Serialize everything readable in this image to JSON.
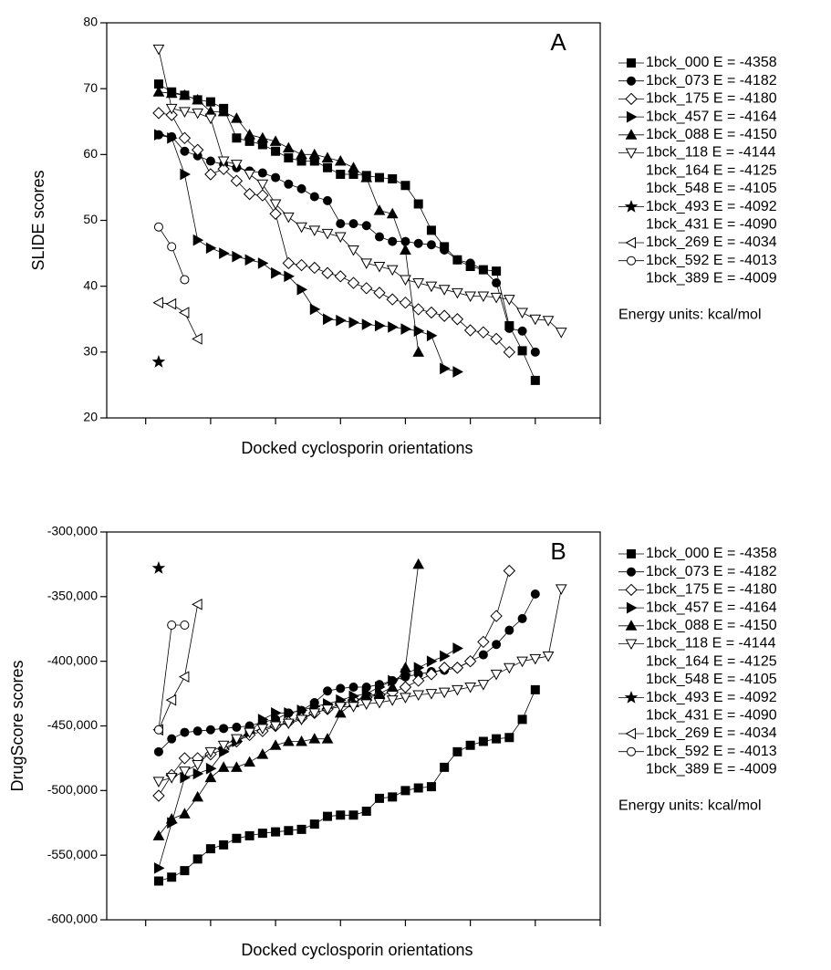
{
  "chart_data": [
    {
      "type": "line",
      "panel_label": "A",
      "ylabel": "SLIDE scores",
      "xlabel": "Docked cyclosporin orientations",
      "legend_note": "Energy units: kcal/mol",
      "xlim": [
        -3,
        35
      ],
      "xticks": [
        0,
        5,
        10,
        15,
        20,
        25,
        30,
        35
      ],
      "ylim": [
        20,
        80
      ],
      "yticks": [
        20,
        30,
        40,
        50,
        60,
        70,
        80
      ],
      "series": [
        {
          "name": "1bck_000 E = -4358",
          "marker": "square",
          "filled": true,
          "color": "#000000",
          "x": [
            1,
            2,
            3,
            4,
            5,
            6,
            7,
            8,
            9,
            10,
            11,
            12,
            13,
            14,
            15,
            16,
            17,
            18,
            19,
            20,
            21,
            22,
            23,
            24,
            25,
            26,
            27,
            28,
            29,
            30
          ],
          "values": [
            70.7,
            69.5,
            69,
            68.3,
            68,
            67,
            62.5,
            62,
            61.5,
            60.5,
            59.5,
            59,
            59,
            58,
            57,
            57,
            56.8,
            56.5,
            56.3,
            55.3,
            52.5,
            48.5,
            46,
            44,
            43,
            42.5,
            42.3,
            34,
            30.2,
            25.7
          ]
        },
        {
          "name": "1bck_073 E = -4182",
          "marker": "circle",
          "filled": true,
          "color": "#000000",
          "x": [
            1,
            2,
            3,
            4,
            5,
            6,
            7,
            8,
            9,
            10,
            11,
            12,
            13,
            14,
            15,
            16,
            17,
            18,
            19,
            20,
            21,
            22,
            23,
            24,
            25,
            26,
            27,
            28,
            29,
            30
          ],
          "values": [
            63,
            62.7,
            60.5,
            59.8,
            59,
            58.5,
            58,
            57.5,
            57.2,
            56.5,
            55.5,
            54.8,
            53.6,
            53,
            49.5,
            49.5,
            49.2,
            47.5,
            46.8,
            46.8,
            46.5,
            46.3,
            45.5,
            44,
            43.5,
            42.5,
            40.5,
            33.6,
            33.2,
            30
          ]
        },
        {
          "name": "1bck_175 E = -4180",
          "marker": "diamond",
          "filled": false,
          "color": "#000000",
          "x": [
            1,
            2,
            3,
            4,
            5,
            6,
            7,
            8,
            9,
            10,
            11,
            12,
            13,
            14,
            15,
            16,
            17,
            18,
            19,
            20,
            21,
            22,
            23,
            24,
            25,
            26,
            27,
            28
          ],
          "values": [
            66.3,
            66,
            62.5,
            60.7,
            57,
            57.8,
            56,
            54,
            53.8,
            51,
            43.5,
            43.2,
            42.8,
            42,
            41.5,
            40.5,
            39.7,
            39,
            38,
            37.5,
            36.5,
            36,
            35.5,
            35,
            33.3,
            33,
            32,
            30
          ]
        },
        {
          "name": "1bck_457 E = -4164",
          "marker": "triangle-right",
          "filled": true,
          "color": "#000000",
          "x": [
            1,
            2,
            3,
            4,
            5,
            6,
            7,
            8,
            9,
            10,
            11,
            12,
            13,
            14,
            15,
            16,
            17,
            18,
            19,
            20,
            21,
            22,
            23,
            24
          ],
          "values": [
            63,
            62.5,
            57,
            47,
            45.8,
            45,
            44.5,
            44,
            43.5,
            42,
            41.5,
            39.5,
            36.5,
            35,
            34.8,
            34.5,
            34.2,
            34,
            33.8,
            33.5,
            33.2,
            32.5,
            27.5,
            27
          ]
        },
        {
          "name": "1bck_088 E = -4150",
          "marker": "triangle-up",
          "filled": true,
          "color": "#000000",
          "x": [
            1,
            2,
            3,
            4,
            5,
            6,
            7,
            8,
            9,
            10,
            11,
            12,
            13,
            14,
            15,
            16,
            17,
            18,
            19,
            20,
            21
          ],
          "values": [
            69.5,
            69.3,
            69,
            68.3,
            66.5,
            66.5,
            65.5,
            63,
            62.5,
            62,
            61,
            60,
            60,
            59.5,
            59,
            58,
            56.5,
            51.5,
            51,
            45.5,
            30
          ]
        },
        {
          "name": "1bck_118 E = -4144",
          "marker": "triangle-down",
          "filled": false,
          "color": "#000000",
          "x": [
            1,
            2,
            3,
            4,
            5,
            6,
            7,
            8,
            9,
            10,
            11,
            12,
            13,
            14,
            15,
            16,
            17,
            18,
            19,
            20,
            21,
            22,
            23,
            24,
            25,
            26,
            27,
            28,
            29,
            30,
            31,
            32
          ],
          "values": [
            76,
            67,
            66.5,
            66.3,
            65.5,
            59,
            58.5,
            57,
            55.5,
            52.5,
            50.5,
            49,
            48.5,
            48,
            47.5,
            45.5,
            43.5,
            43,
            42.5,
            41,
            40.5,
            40,
            39.5,
            39,
            38.5,
            38.5,
            38.3,
            38,
            36,
            35,
            34.8,
            33
          ]
        },
        {
          "name": "1bck_164 E = -4125",
          "x": [],
          "values": []
        },
        {
          "name": "1bck_548 E = -4105",
          "x": [],
          "values": []
        },
        {
          "name": "1bck_493 E = -4092",
          "marker": "star",
          "filled": true,
          "color": "#000000",
          "x": [
            1
          ],
          "values": [
            28.5
          ]
        },
        {
          "name": "1bck_431 E = -4090",
          "x": [],
          "values": []
        },
        {
          "name": "1bck_269 E = -4034",
          "marker": "triangle-left",
          "filled": false,
          "color": "#000000",
          "x": [
            1,
            2,
            3,
            4
          ],
          "values": [
            37.5,
            37.3,
            36,
            32
          ]
        },
        {
          "name": "1bck_592 E = -4013",
          "marker": "circle",
          "filled": false,
          "color": "#000000",
          "x": [
            1,
            2,
            3
          ],
          "values": [
            49,
            46,
            41
          ]
        },
        {
          "name": "1bck_389 E = -4009",
          "x": [],
          "values": []
        }
      ]
    },
    {
      "type": "line",
      "panel_label": "B",
      "ylabel": "DrugScore scores",
      "xlabel": "Docked cyclosporin orientations",
      "legend_note": "Energy units: kcal/mol",
      "xlim": [
        -3,
        35
      ],
      "xticks": [
        0,
        5,
        10,
        15,
        20,
        25,
        30,
        35
      ],
      "ylim": [
        -600000,
        -300000
      ],
      "yticks": [
        {
          "value": -600000,
          "label": "-600,000"
        },
        {
          "value": -550000,
          "label": "-550,000"
        },
        {
          "value": -500000,
          "label": "-500,000"
        },
        {
          "value": -450000,
          "label": "-450,000"
        },
        {
          "value": -400000,
          "label": "-400,000"
        },
        {
          "value": -350000,
          "label": "-350,000"
        },
        {
          "value": -300000,
          "label": "-300,000"
        }
      ],
      "series": [
        {
          "name": "1bck_000 E = -4358",
          "marker": "square",
          "filled": true,
          "color": "#000000",
          "x": [
            1,
            2,
            3,
            4,
            5,
            6,
            7,
            8,
            9,
            10,
            11,
            12,
            13,
            14,
            15,
            16,
            17,
            18,
            19,
            20,
            21,
            22,
            23,
            24,
            25,
            26,
            27,
            28,
            29,
            30
          ],
          "values": [
            -570000,
            -567000,
            -562000,
            -553000,
            -545000,
            -542000,
            -537000,
            -535000,
            -533000,
            -532000,
            -531000,
            -530000,
            -526000,
            -520000,
            -519000,
            -519000,
            -516000,
            -506000,
            -505000,
            -500000,
            -498000,
            -497000,
            -482000,
            -470000,
            -465000,
            -462000,
            -460000,
            -459000,
            -445000,
            -422000
          ]
        },
        {
          "name": "1bck_073 E = -4182",
          "marker": "circle",
          "filled": true,
          "color": "#000000",
          "x": [
            1,
            2,
            3,
            4,
            5,
            6,
            7,
            8,
            9,
            10,
            11,
            12,
            13,
            14,
            15,
            16,
            17,
            18,
            19,
            20,
            21,
            22,
            23,
            24,
            25,
            26,
            27,
            28,
            29,
            30
          ],
          "values": [
            -470000,
            -460000,
            -455000,
            -454000,
            -453000,
            -452000,
            -451000,
            -450000,
            -447000,
            -445000,
            -440000,
            -438000,
            -432000,
            -423000,
            -421000,
            -420000,
            -420000,
            -418000,
            -415000,
            -412000,
            -410000,
            -408000,
            -407000,
            -405000,
            -400000,
            -395000,
            -387000,
            -376000,
            -367000,
            -348000
          ]
        },
        {
          "name": "1bck_175 E = -4180",
          "marker": "diamond",
          "filled": false,
          "color": "#000000",
          "x": [
            1,
            2,
            3,
            4,
            5,
            6,
            7,
            8,
            9,
            10,
            11,
            12,
            13,
            14,
            15,
            16,
            17,
            18,
            19,
            20,
            21,
            22,
            23,
            24,
            25,
            26,
            27,
            28
          ],
          "values": [
            -504000,
            -488000,
            -475000,
            -475000,
            -472000,
            -468000,
            -462000,
            -457000,
            -454000,
            -450000,
            -447000,
            -444000,
            -440000,
            -437000,
            -433000,
            -430000,
            -428000,
            -426000,
            -424000,
            -420000,
            -415000,
            -410000,
            -405000,
            -405000,
            -400000,
            -385000,
            -365000,
            -330000
          ]
        },
        {
          "name": "1bck_457 E = -4164",
          "marker": "triangle-right",
          "filled": true,
          "color": "#000000",
          "x": [
            1,
            2,
            3,
            4,
            5,
            6,
            7,
            8,
            9,
            10,
            11,
            12,
            13,
            14,
            15,
            16,
            17,
            18,
            19,
            20,
            21,
            22,
            23,
            24
          ],
          "values": [
            -560000,
            -525000,
            -490000,
            -487000,
            -483000,
            -470000,
            -462000,
            -455000,
            -445000,
            -440000,
            -440000,
            -438000,
            -435000,
            -433000,
            -430000,
            -427000,
            -425000,
            -420000,
            -415000,
            -410000,
            -405000,
            -400000,
            -396000,
            -390000
          ]
        },
        {
          "name": "1bck_088 E = -4150",
          "marker": "triangle-up",
          "filled": true,
          "color": "#000000",
          "x": [
            1,
            2,
            3,
            4,
            5,
            6,
            7,
            8,
            9,
            10,
            11,
            12,
            13,
            14,
            15,
            16,
            17,
            18,
            19,
            20,
            21
          ],
          "values": [
            -535000,
            -522000,
            -518000,
            -505000,
            -490000,
            -482000,
            -482000,
            -478000,
            -472000,
            -465000,
            -462000,
            -462000,
            -460000,
            -460000,
            -440000,
            -432000,
            -427000,
            -425000,
            -420000,
            -405000,
            -325000
          ]
        },
        {
          "name": "1bck_118 E = -4144",
          "marker": "triangle-down",
          "filled": false,
          "color": "#000000",
          "x": [
            1,
            2,
            3,
            4,
            5,
            6,
            7,
            8,
            9,
            10,
            11,
            12,
            13,
            14,
            15,
            16,
            17,
            18,
            19,
            20,
            21,
            22,
            23,
            24,
            25,
            26,
            27,
            28,
            29,
            30,
            31,
            32
          ],
          "values": [
            -493000,
            -490000,
            -485000,
            -480000,
            -470000,
            -465000,
            -460000,
            -455000,
            -452000,
            -450000,
            -448000,
            -445000,
            -440000,
            -437000,
            -435000,
            -435000,
            -433000,
            -432000,
            -430000,
            -428000,
            -426000,
            -425000,
            -424000,
            -422000,
            -420000,
            -418000,
            -410000,
            -405000,
            -400000,
            -398000,
            -396000,
            -344000
          ]
        },
        {
          "name": "1bck_164 E = -4125",
          "x": [],
          "values": []
        },
        {
          "name": "1bck_548 E = -4105",
          "x": [],
          "values": []
        },
        {
          "name": "1bck_493 E = -4092",
          "marker": "star",
          "filled": true,
          "color": "#000000",
          "x": [
            1
          ],
          "values": [
            -328000
          ]
        },
        {
          "name": "1bck_431 E = -4090",
          "x": [],
          "values": []
        },
        {
          "name": "1bck_269 E = -4034",
          "marker": "triangle-left",
          "filled": false,
          "color": "#000000",
          "x": [
            1,
            2,
            3,
            4
          ],
          "values": [
            -453000,
            -430000,
            -412000,
            -356000
          ]
        },
        {
          "name": "1bck_592 E = -4013",
          "marker": "circle",
          "filled": false,
          "color": "#000000",
          "x": [
            1,
            2,
            3
          ],
          "values": [
            -453000,
            -372000,
            -372000
          ]
        },
        {
          "name": "1bck_389 E = -4009",
          "x": [],
          "values": []
        }
      ]
    }
  ]
}
